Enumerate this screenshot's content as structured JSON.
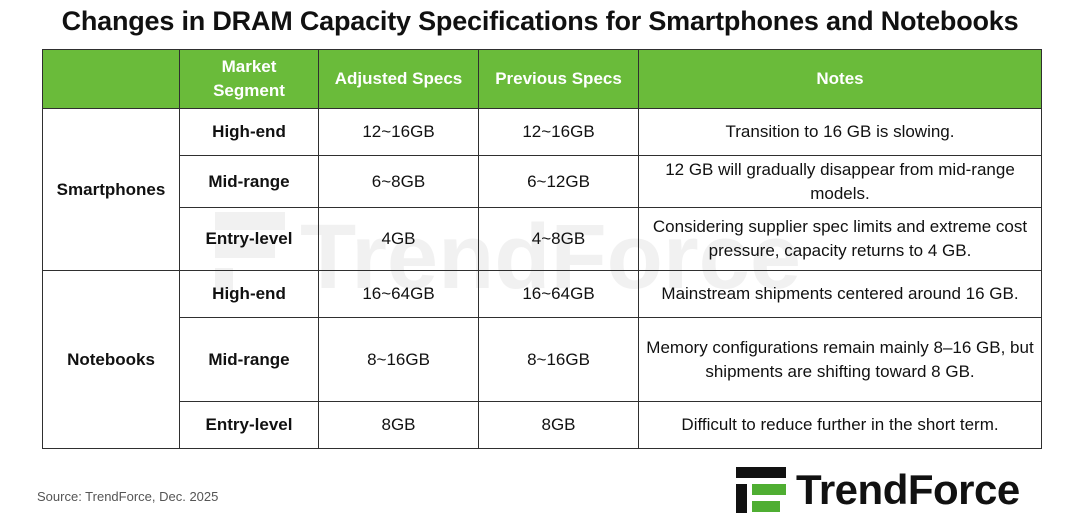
{
  "title": "Changes in DRAM Capacity Specifications for Smartphones and Notebooks",
  "table": {
    "headers": [
      "",
      "Market Segment",
      "Adjusted Specs",
      "Previous Specs",
      "Notes"
    ],
    "groups": [
      {
        "name": "Smartphones",
        "rows": [
          {
            "segment": "High-end",
            "adjusted": "12~16GB",
            "previous": "12~16GB",
            "notes": "Transition to 16 GB is slowing."
          },
          {
            "segment": "Mid-range",
            "adjusted": "6~8GB",
            "previous": "6~12GB",
            "notes": "12 GB will gradually disappear from mid-range models."
          },
          {
            "segment": "Entry-level",
            "adjusted": "4GB",
            "previous": "4~8GB",
            "notes": "Considering supplier spec limits and extreme cost pressure, capacity returns to 4 GB."
          }
        ]
      },
      {
        "name": "Notebooks",
        "rows": [
          {
            "segment": "High-end",
            "adjusted": "16~64GB",
            "previous": "16~64GB",
            "notes": "Mainstream shipments centered around 16 GB."
          },
          {
            "segment": "Mid-range",
            "adjusted": "8~16GB",
            "previous": "8~16GB",
            "notes": "Memory configurations remain mainly 8–16 GB, but shipments are shifting toward 8 GB."
          },
          {
            "segment": "Entry-level",
            "adjusted": "8GB",
            "previous": "8GB",
            "notes": "Difficult to reduce further in the short term."
          }
        ]
      }
    ]
  },
  "footer": {
    "source": "Source: TrendForce,  Dec. 2025"
  },
  "brand": {
    "name": "TrendForce",
    "watermark": "TrendForce",
    "logo_icon": "trendforce-logo-icon",
    "header_color": "#6abb3a",
    "logo_green": "#4fae32"
  }
}
